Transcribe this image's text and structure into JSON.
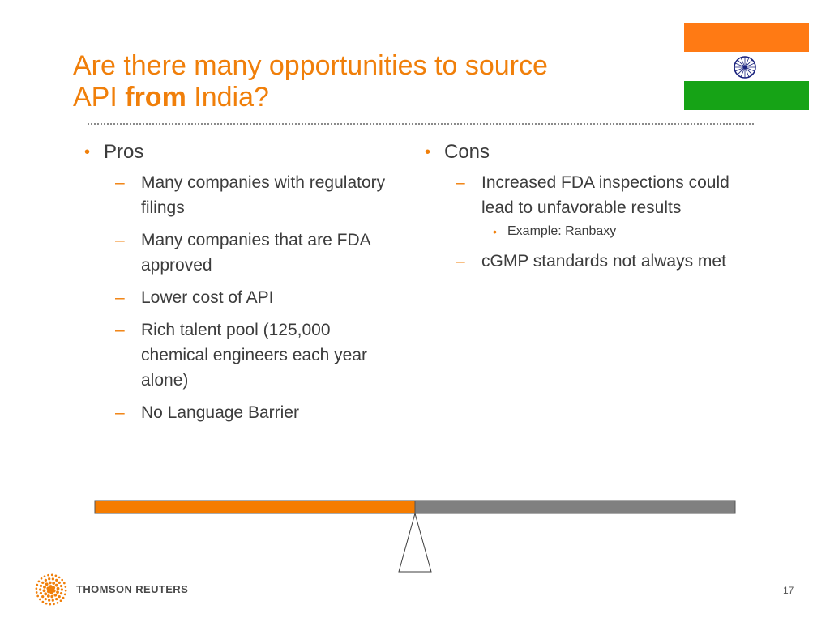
{
  "slide": {
    "title_line1": "Are there many opportunities to source",
    "title_line2_pre": "API ",
    "title_line2_bold": "from",
    "title_line2_post": " India?",
    "page_number": "17"
  },
  "pros": {
    "heading": "Pros",
    "items": [
      "Many companies with regulatory filings",
      "Many companies that are FDA approved",
      "Lower cost of API",
      "Rich talent pool (125,000 chemical engineers each year alone)",
      "No Language Barrier"
    ]
  },
  "cons": {
    "heading": "Cons",
    "items": [
      {
        "text": "Increased FDA inspections could lead to unfavorable results",
        "sub": [
          "Example: Ranbaxy"
        ]
      },
      {
        "text": "cGMP standards not always met",
        "sub": []
      }
    ]
  },
  "balance": {
    "pros_color": "#f57c00",
    "cons_color": "#808080"
  },
  "flag": {
    "icon": "india-flag-icon",
    "colors": [
      "#ff7a14",
      "#ffffff",
      "#16a316"
    ],
    "chakra_color": "#1a237e"
  },
  "footer": {
    "brand": "THOMSON REUTERS",
    "logo_icon": "thomson-reuters-logo-icon",
    "accent": "#f07f0a"
  }
}
